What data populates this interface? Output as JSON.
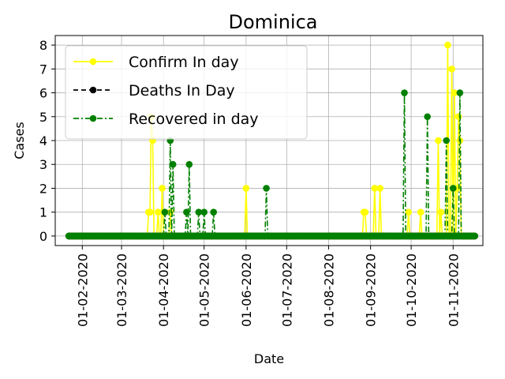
{
  "chart_data": {
    "type": "line",
    "title": "Dominica",
    "xlabel": "Date",
    "ylabel": "Cases",
    "ylim": [
      -0.4,
      8.4
    ],
    "xlim": [
      "2020-01-12",
      "2020-11-23"
    ],
    "grid": true,
    "legend_position": "top-left",
    "y_ticks": [
      "0",
      "1",
      "2",
      "3",
      "4",
      "5",
      "6",
      "7",
      "8"
    ],
    "x_ticks": [
      "01-02-2020",
      "01-03-2020",
      "01-04-2020",
      "01-05-2020",
      "01-06-2020",
      "01-07-2020",
      "01-08-2020",
      "01-09-2020",
      "01-10-2020",
      "01-11-2020"
    ],
    "x_tick_dates": [
      "2020-02-01",
      "2020-03-01",
      "2020-04-01",
      "2020-05-01",
      "2020-06-01",
      "2020-07-01",
      "2020-08-01",
      "2020-09-01",
      "2020-10-01",
      "2020-11-01"
    ],
    "x_start": "2020-01-22",
    "x_end": "2020-11-17",
    "series": [
      {
        "name": "Confirm In day",
        "color": "#ffff00",
        "line_style": "solid",
        "marker": "circle",
        "nonzero": [
          [
            "2020-03-21",
            1
          ],
          [
            "2020-03-22",
            1
          ],
          [
            "2020-03-23",
            5
          ],
          [
            "2020-03-24",
            4
          ],
          [
            "2020-03-28",
            1
          ],
          [
            "2020-03-31",
            2
          ],
          [
            "2020-04-06",
            1
          ],
          [
            "2020-06-01",
            2
          ],
          [
            "2020-08-27",
            1
          ],
          [
            "2020-08-28",
            1
          ],
          [
            "2020-09-04",
            2
          ],
          [
            "2020-09-08",
            2
          ],
          [
            "2020-09-29",
            1
          ],
          [
            "2020-10-08",
            1
          ],
          [
            "2020-10-21",
            4
          ],
          [
            "2020-10-23",
            1
          ],
          [
            "2020-10-28",
            8
          ],
          [
            "2020-10-31",
            7
          ],
          [
            "2020-11-02",
            6
          ],
          [
            "2020-11-04",
            2
          ],
          [
            "2020-11-05",
            5
          ],
          [
            "2020-11-06",
            4
          ]
        ]
      },
      {
        "name": "Deaths In Day",
        "color": "#000000",
        "line_style": "dashed",
        "marker": "circle",
        "nonzero": []
      },
      {
        "name": "Recovered in day",
        "color": "#008000",
        "line_style": "dashdot",
        "marker": "circle",
        "nonzero": [
          [
            "2020-04-02",
            1
          ],
          [
            "2020-04-06",
            4
          ],
          [
            "2020-04-08",
            3
          ],
          [
            "2020-04-18",
            1
          ],
          [
            "2020-04-20",
            3
          ],
          [
            "2020-04-27",
            1
          ],
          [
            "2020-05-01",
            1
          ],
          [
            "2020-05-08",
            1
          ],
          [
            "2020-06-16",
            2
          ],
          [
            "2020-09-26",
            6
          ],
          [
            "2020-10-13",
            5
          ],
          [
            "2020-10-27",
            4
          ],
          [
            "2020-11-01",
            2
          ],
          [
            "2020-11-06",
            6
          ]
        ]
      }
    ]
  }
}
